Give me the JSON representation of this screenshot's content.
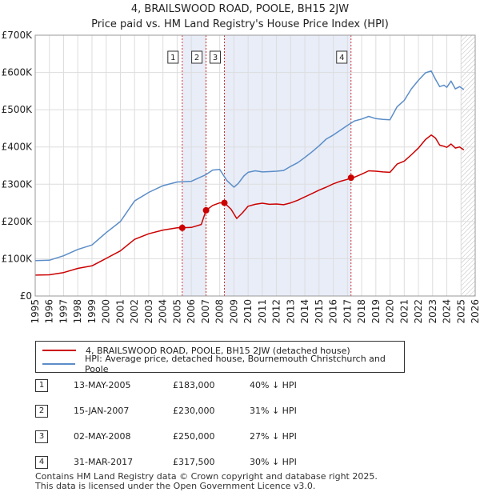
{
  "chart_title": "4, BRAILSWOOD ROAD, POOLE, BH15 2JW",
  "chart_subtitle": "Price paid vs. HM Land Registry's House Price Index (HPI)",
  "chart_data": {
    "type": "line",
    "title": "4, BRAILSWOOD ROAD, POOLE, BH15 2JW",
    "subtitle": "Price paid vs. HM Land Registry's House Price Index (HPI)",
    "xlabel": "",
    "ylabel": "",
    "xlim": [
      1995,
      2026
    ],
    "ylim": [
      0,
      700000
    ],
    "y_ticks": [
      0,
      100000,
      200000,
      300000,
      400000,
      500000,
      600000,
      700000
    ],
    "y_tick_labels": [
      "£0",
      "£100K",
      "£200K",
      "£300K",
      "£400K",
      "£500K",
      "£600K",
      "£700K"
    ],
    "x_ticks": [
      1995,
      1996,
      1997,
      1998,
      1999,
      2000,
      2001,
      2002,
      2003,
      2004,
      2005,
      2006,
      2007,
      2008,
      2009,
      2010,
      2011,
      2012,
      2013,
      2014,
      2015,
      2016,
      2017,
      2018,
      2019,
      2020,
      2021,
      2022,
      2023,
      2024,
      2025,
      2026
    ],
    "grid": true,
    "shaded_ranges": [
      [
        2005.36,
        2007.04
      ],
      [
        2008.33,
        2017.25
      ]
    ],
    "forecast_start": 2025.0,
    "series": [
      {
        "name": "4, BRAILSWOOD ROAD, POOLE, BH15 2JW (detached house)",
        "color": "#cc0000",
        "x": [
          1995.0,
          1996.0,
          1997.0,
          1998.0,
          1999.0,
          2000.0,
          2001.0,
          2002.0,
          2003.0,
          2004.0,
          2005.0,
          2005.36,
          2006.0,
          2006.7,
          2007.04,
          2007.5,
          2008.0,
          2008.33,
          2008.8,
          2009.2,
          2009.6,
          2010.0,
          2010.5,
          2011.0,
          2011.5,
          2012.0,
          2012.5,
          2013.0,
          2013.5,
          2014.0,
          2014.5,
          2015.0,
          2015.5,
          2016.0,
          2016.5,
          2017.0,
          2017.25,
          2017.5,
          2018.0,
          2018.5,
          2019.0,
          2019.5,
          2020.0,
          2020.5,
          2021.0,
          2021.5,
          2022.0,
          2022.5,
          2022.9,
          2023.2,
          2023.5,
          2023.8,
          2024.0,
          2024.3,
          2024.6,
          2024.9,
          2025.2
        ],
        "y": [
          56000,
          57000,
          63000,
          74000,
          81000,
          101000,
          121000,
          152000,
          167000,
          177000,
          183000,
          183000,
          184000,
          192000,
          230000,
          243000,
          250000,
          250000,
          233000,
          208000,
          223000,
          241000,
          246000,
          249000,
          246000,
          247000,
          245000,
          250000,
          257000,
          266000,
          275000,
          284000,
          292000,
          301000,
          308000,
          313000,
          317500,
          319000,
          327000,
          336000,
          335000,
          333000,
          332000,
          354000,
          362000,
          379000,
          397000,
          420000,
          432000,
          424000,
          405000,
          402000,
          399000,
          408000,
          397000,
          400000,
          392000
        ]
      },
      {
        "name": "HPI: Average price, detached house, Bournemouth Christchurch and Poole",
        "color": "#5b8dc8",
        "x": [
          1995.0,
          1996.0,
          1997.0,
          1998.0,
          1999.0,
          2000.0,
          2001.0,
          2002.0,
          2003.0,
          2004.0,
          2005.0,
          2006.0,
          2007.0,
          2007.5,
          2008.0,
          2008.5,
          2009.0,
          2009.3,
          2009.7,
          2010.0,
          2010.5,
          2011.0,
          2011.5,
          2012.0,
          2012.5,
          2013.0,
          2013.5,
          2014.0,
          2014.5,
          2015.0,
          2015.5,
          2016.0,
          2016.5,
          2017.0,
          2017.5,
          2018.0,
          2018.5,
          2019.0,
          2019.5,
          2020.0,
          2020.5,
          2021.0,
          2021.5,
          2022.0,
          2022.5,
          2022.9,
          2023.2,
          2023.5,
          2023.8,
          2024.0,
          2024.3,
          2024.6,
          2024.9,
          2025.2
        ],
        "y": [
          95000,
          96000,
          108000,
          125000,
          137000,
          170000,
          200000,
          255000,
          278000,
          296000,
          306000,
          308000,
          325000,
          338000,
          340000,
          310000,
          292000,
          302000,
          322000,
          332000,
          336000,
          333000,
          334000,
          335000,
          337000,
          348000,
          358000,
          372000,
          387000,
          403000,
          421000,
          432000,
          445000,
          458000,
          470000,
          475000,
          482000,
          476000,
          474000,
          473000,
          508000,
          525000,
          556000,
          579000,
          599000,
          604000,
          582000,
          562000,
          566000,
          560000,
          577000,
          556000,
          562000,
          554000
        ]
      }
    ],
    "annotations": [
      {
        "label": "1",
        "x": 2005.36
      },
      {
        "label": "2",
        "x": 2007.04
      },
      {
        "label": "3",
        "x": 2008.33
      },
      {
        "label": "4",
        "x": 2017.25
      }
    ],
    "sale_points": [
      {
        "x": 2005.36,
        "y": 183000
      },
      {
        "x": 2007.04,
        "y": 230000
      },
      {
        "x": 2008.33,
        "y": 250000
      },
      {
        "x": 2017.25,
        "y": 317500
      }
    ]
  },
  "legend": {
    "property_label": "4, BRAILSWOOD ROAD, POOLE, BH15 2JW (detached house)",
    "hpi_label": "HPI: Average price, detached house, Bournemouth Christchurch and Poole"
  },
  "sales": [
    {
      "num": "1",
      "date": "13-MAY-2005",
      "price": "£183,000",
      "hpi": "40% ↓ HPI"
    },
    {
      "num": "2",
      "date": "15-JAN-2007",
      "price": "£230,000",
      "hpi": "31% ↓ HPI"
    },
    {
      "num": "3",
      "date": "02-MAY-2008",
      "price": "£250,000",
      "hpi": "27% ↓ HPI"
    },
    {
      "num": "4",
      "date": "31-MAR-2017",
      "price": "£317,500",
      "hpi": "30% ↓ HPI"
    }
  ],
  "footer": {
    "line1": "Contains HM Land Registry data © Crown copyright and database right 2025.",
    "line2": "This data is licensed under the Open Government Licence v3.0."
  },
  "colors": {
    "property": "#cc0000",
    "hpi": "#5b8dc8",
    "shade": "#e8edf8",
    "grid": "#dddddd",
    "vline": "#cc0000"
  }
}
